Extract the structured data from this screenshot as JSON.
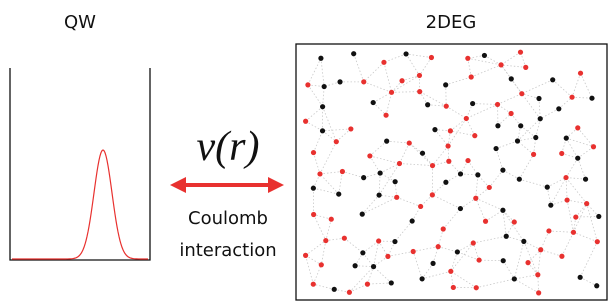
{
  "labels": {
    "left": "QW",
    "right": "2DEG"
  },
  "formula": "v(r)",
  "arrow_label": [
    "Coulomb",
    "interaction"
  ]
}
